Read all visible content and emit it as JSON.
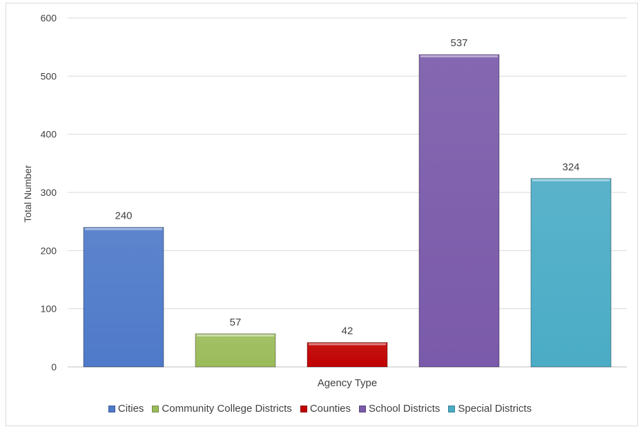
{
  "chart_data": {
    "type": "bar",
    "categories": [
      "Cities",
      "Community College Districts",
      "Counties",
      "School Districts",
      "Special Districts"
    ],
    "values": [
      240,
      57,
      42,
      537,
      324
    ],
    "colors": [
      "#4f7ac9",
      "#9bbb59",
      "#c00000",
      "#7a5aaa",
      "#4bacc6"
    ],
    "title": "",
    "xlabel": "Agency Type",
    "ylabel": "Total Number",
    "ylim": [
      0,
      600
    ],
    "yticks": [
      0,
      100,
      200,
      300,
      400,
      500,
      600
    ],
    "grid": true,
    "legend_position": "bottom",
    "data_labels": true
  }
}
